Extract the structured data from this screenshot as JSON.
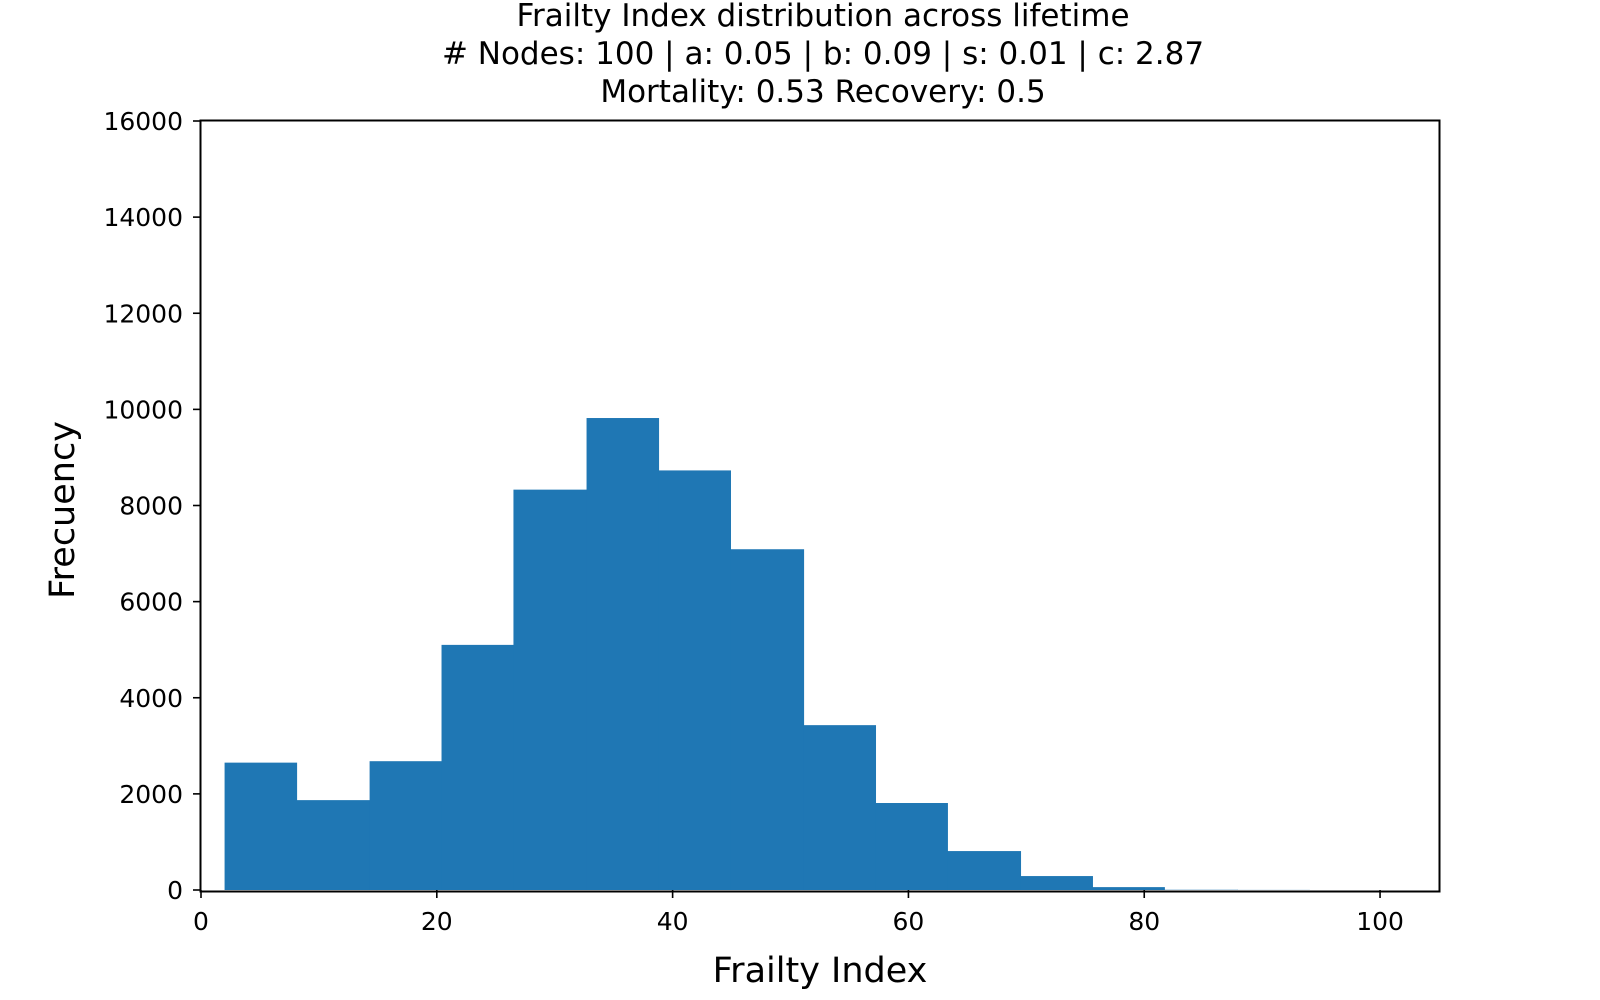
{
  "chart_data": {
    "type": "bar",
    "title_lines": [
      "Frailty Index distribution across lifetime",
      "# Nodes: 100 | a: 0.05 | b: 0.09 | s: 0.01 | c: 2.87",
      "Mortality: 0.53 Recovery: 0.5"
    ],
    "xlabel": "Frailty Index",
    "ylabel": "Frecuency",
    "xlim": [
      0,
      105
    ],
    "ylim": [
      0,
      16000
    ],
    "xticks": [
      0,
      20,
      40,
      60,
      80,
      100
    ],
    "yticks": [
      0,
      2000,
      4000,
      6000,
      8000,
      10000,
      12000,
      14000,
      16000
    ],
    "xtick_labels": [
      "0",
      "20",
      "40",
      "60",
      "80",
      "100"
    ],
    "ytick_labels": [
      "0",
      "2000",
      "4000",
      "6000",
      "8000",
      "10000",
      "12000",
      "14000",
      "16000"
    ],
    "bar_color": "#1f77b4",
    "grid": false,
    "bins": [
      {
        "x0": 2.0,
        "x1": 8.1,
        "value": 2650
      },
      {
        "x0": 8.1,
        "x1": 14.3,
        "value": 1870
      },
      {
        "x0": 14.3,
        "x1": 20.4,
        "value": 2680
      },
      {
        "x0": 20.4,
        "x1": 26.5,
        "value": 5100
      },
      {
        "x0": 26.5,
        "x1": 32.7,
        "value": 8330
      },
      {
        "x0": 32.7,
        "x1": 38.8,
        "value": 9820
      },
      {
        "x0": 38.8,
        "x1": 44.9,
        "value": 8730
      },
      {
        "x0": 44.9,
        "x1": 51.1,
        "value": 7090
      },
      {
        "x0": 51.1,
        "x1": 57.2,
        "value": 3430
      },
      {
        "x0": 57.2,
        "x1": 63.3,
        "value": 1810
      },
      {
        "x0": 63.3,
        "x1": 69.5,
        "value": 810
      },
      {
        "x0": 69.5,
        "x1": 75.6,
        "value": 290
      },
      {
        "x0": 75.6,
        "x1": 81.7,
        "value": 60
      },
      {
        "x0": 81.7,
        "x1": 87.9,
        "value": 5
      },
      {
        "x0": 87.9,
        "x1": 94.0,
        "value": 2
      }
    ]
  }
}
